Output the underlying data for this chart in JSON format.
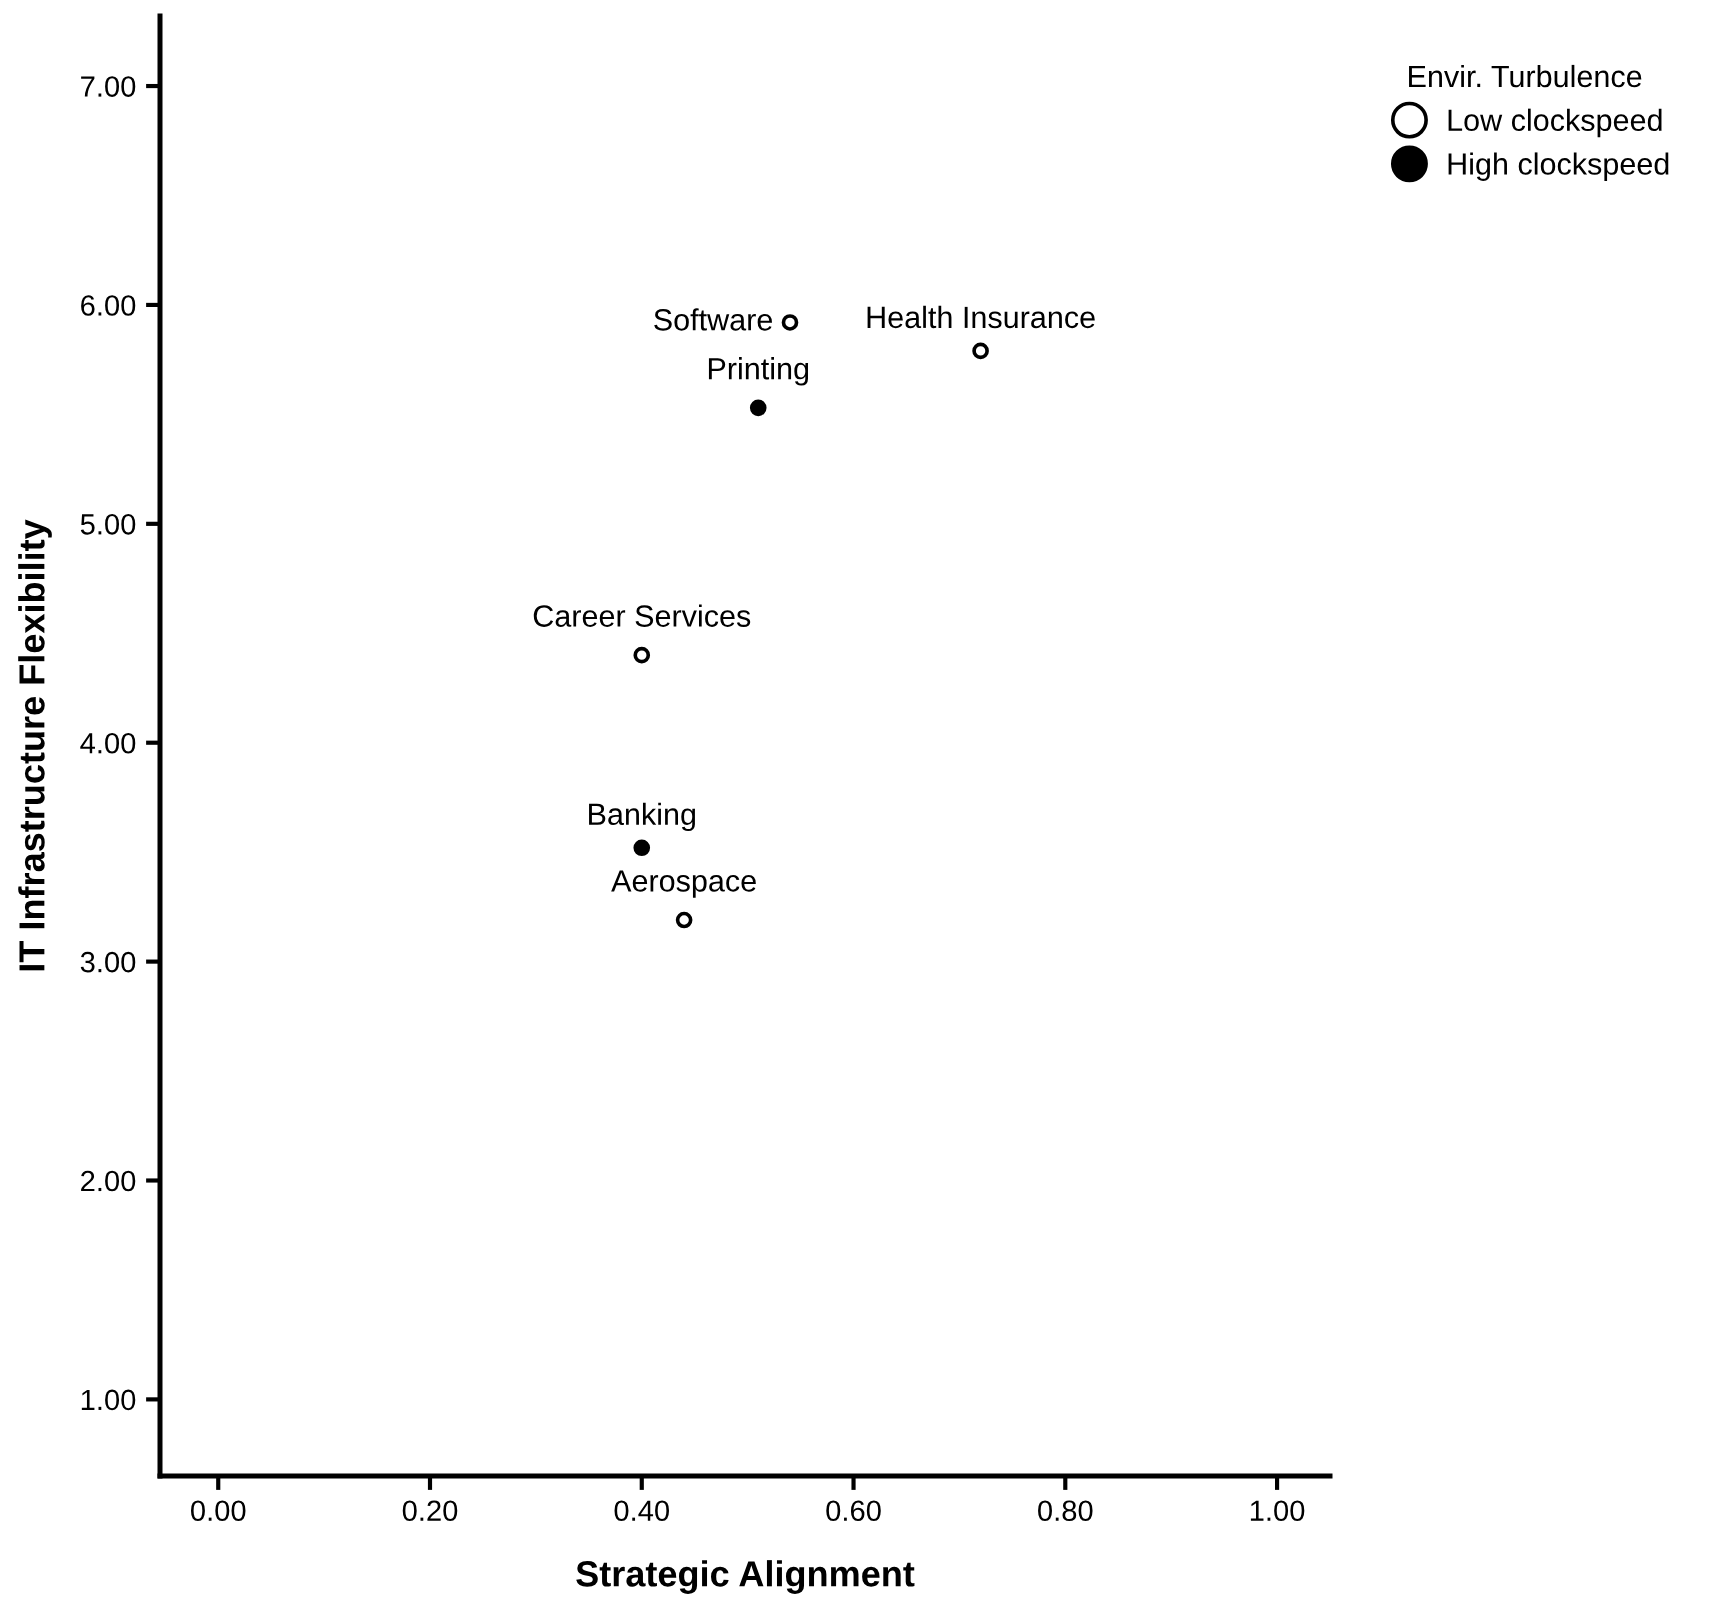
{
  "chart_data": {
    "type": "scatter",
    "xlabel": "Strategic Alignment",
    "ylabel": "IT Infrastructure Flexibility",
    "legend_title": "Envir. Turbulence",
    "series": [
      {
        "name": "Low clockspeed",
        "color": "#ffffff",
        "x": [
          0.54,
          0.72,
          0.4,
          0.44
        ],
        "values": [
          5.92,
          5.79,
          4.4,
          3.19
        ]
      },
      {
        "name": "High clockspeed",
        "color": "#000000",
        "x": [
          0.51,
          0.4
        ],
        "values": [
          5.53,
          3.52
        ]
      }
    ],
    "annotations": [
      {
        "text": "Software",
        "x": 0.54,
        "y": 5.92
      },
      {
        "text": "Health Insurance",
        "x": 0.72,
        "y": 5.79
      },
      {
        "text": "Printing",
        "x": 0.51,
        "y": 5.53
      },
      {
        "text": "Career Services",
        "x": 0.4,
        "y": 4.4
      },
      {
        "text": "Banking",
        "x": 0.4,
        "y": 3.52
      },
      {
        "text": "Aerospace",
        "x": 0.44,
        "y": 3.19
      }
    ],
    "xlim": [
      -0.055,
      1.05
    ],
    "ylim": [
      0.65,
      7.32
    ],
    "xticks": [
      {
        "value": 0,
        "label": "0.00"
      },
      {
        "value": 0.2,
        "label": "0.20"
      },
      {
        "value": 0.4,
        "label": "0.40"
      },
      {
        "value": 0.6,
        "label": "0.60"
      },
      {
        "value": 0.8,
        "label": "0.80"
      },
      {
        "value": 1,
        "label": "1.00"
      }
    ],
    "yticks": [
      {
        "value": 1,
        "label": "1.00"
      },
      {
        "value": 2,
        "label": "2.00"
      },
      {
        "value": 3,
        "label": "3.00"
      },
      {
        "value": 4,
        "label": "4.00"
      },
      {
        "value": 5,
        "label": "5.00"
      },
      {
        "value": 6,
        "label": "6.00"
      },
      {
        "value": 7,
        "label": "7.00"
      }
    ],
    "marker": "circle",
    "grid": false,
    "legend": "top right"
  }
}
